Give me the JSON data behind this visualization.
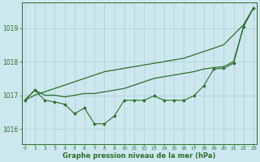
{
  "xlabel": "Graphe pression niveau de la mer (hPa)",
  "background_color": "#cce8ee",
  "grid_color": "#aaccd4",
  "line_color": "#2d6e2d",
  "ylim": [
    1015.55,
    1019.75
  ],
  "xlim": [
    -0.3,
    23.3
  ],
  "yticks": [
    1016,
    1017,
    1018,
    1019
  ],
  "xticks": [
    0,
    1,
    2,
    3,
    4,
    5,
    6,
    7,
    8,
    9,
    10,
    11,
    12,
    13,
    14,
    15,
    16,
    17,
    18,
    19,
    20,
    21,
    22,
    23
  ],
  "straight_line": [
    1016.85,
    1017.0,
    1017.1,
    1017.2,
    1017.3,
    1017.4,
    1017.5,
    1017.6,
    1017.7,
    1017.75,
    1017.8,
    1017.85,
    1017.9,
    1017.95,
    1018.0,
    1018.05,
    1018.1,
    1018.2,
    1018.3,
    1018.4,
    1018.5,
    1018.8,
    1019.1,
    1019.6
  ],
  "smooth_line": [
    1016.85,
    1017.15,
    1017.0,
    1017.0,
    1016.95,
    1017.0,
    1017.05,
    1017.05,
    1017.1,
    1017.15,
    1017.2,
    1017.3,
    1017.4,
    1017.5,
    1017.55,
    1017.6,
    1017.65,
    1017.7,
    1017.78,
    1017.82,
    1017.85,
    1018.0,
    1019.05,
    1019.6
  ],
  "jagged_line": [
    1016.85,
    1017.15,
    1016.85,
    1016.8,
    1016.73,
    1016.45,
    1016.62,
    1016.15,
    1016.15,
    1016.38,
    1016.85,
    1016.85,
    1016.85,
    1016.98,
    1016.85,
    1016.85,
    1016.85,
    1016.98,
    1017.28,
    1017.78,
    1017.8,
    1017.95,
    1019.05,
    1019.6
  ]
}
